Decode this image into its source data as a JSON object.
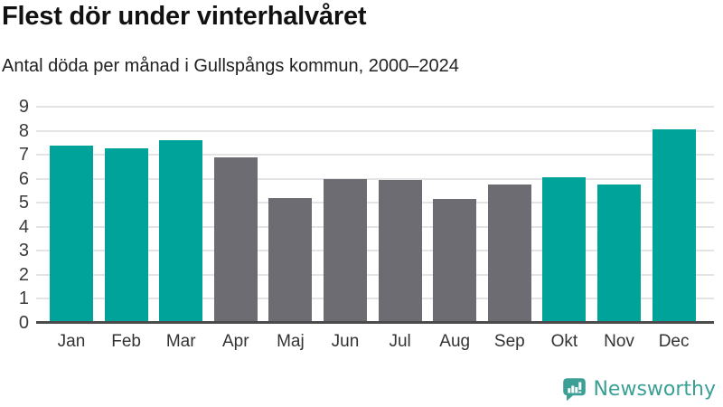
{
  "header": {
    "title": "Flest dör under vinterhalvåret",
    "subtitle": "Antal döda per månad i Gullspångs kommun, 2000–2024"
  },
  "chart_data": {
    "type": "bar",
    "title": "Flest dör under vinterhalvåret",
    "subtitle": "Antal döda per månad i Gullspångs kommun, 2000–2024",
    "categories": [
      "Jan",
      "Feb",
      "Mar",
      "Apr",
      "Maj",
      "Jun",
      "Jul",
      "Aug",
      "Sep",
      "Okt",
      "Nov",
      "Dec"
    ],
    "values": [
      7.4,
      7.25,
      7.6,
      6.9,
      5.2,
      6.0,
      5.95,
      5.15,
      5.75,
      6.05,
      5.75,
      8.05
    ],
    "highlight_months": [
      "Jan",
      "Feb",
      "Mar",
      "Okt",
      "Nov",
      "Dec"
    ],
    "colors": {
      "highlight": "#00a39a",
      "default": "#6c6c72",
      "gridline": "#e4e4e4",
      "axis": "#4b4b4b"
    },
    "xlabel": "",
    "ylabel": "",
    "ylim": [
      0,
      9
    ],
    "yticks": [
      0,
      1,
      2,
      3,
      4,
      5,
      6,
      7,
      8,
      9
    ],
    "grid": true,
    "legend": "none"
  },
  "footer": {
    "brand": "Newsworthy",
    "brand_color": "#3aa096",
    "logo_icon": "newsworthy-badge-bar-chart-icon"
  }
}
